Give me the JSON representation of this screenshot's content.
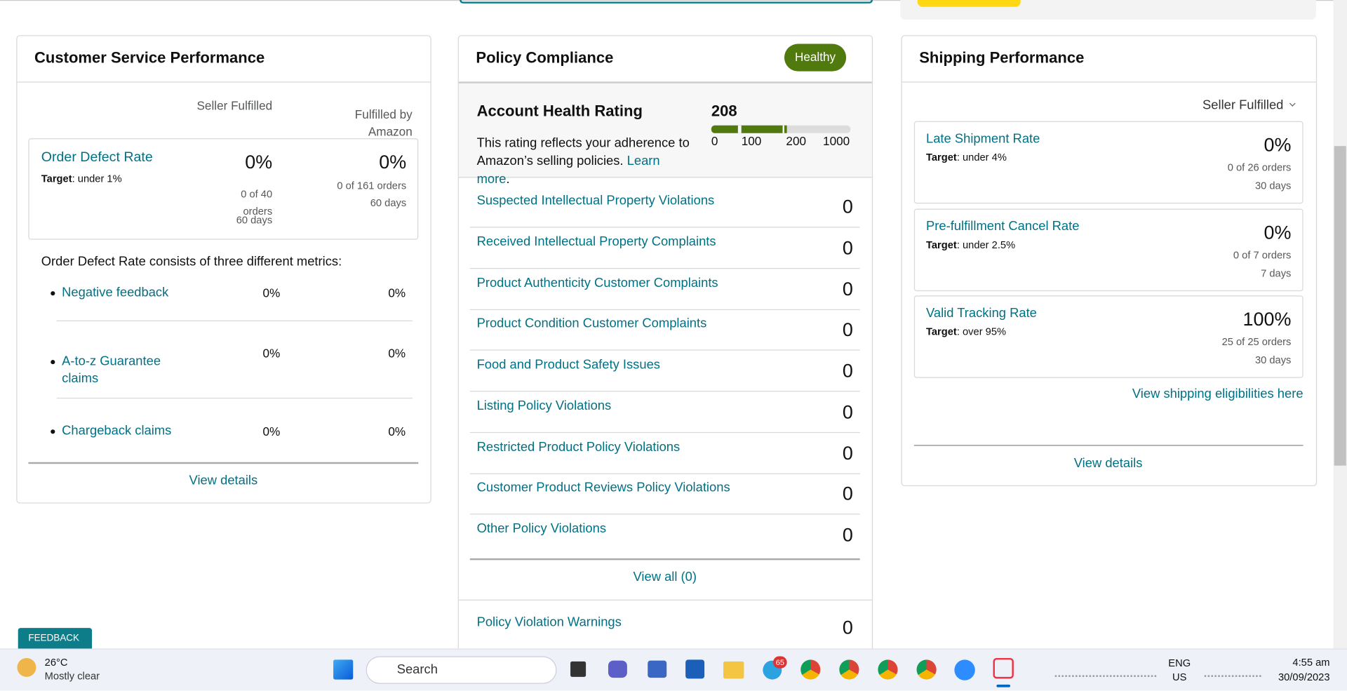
{
  "customer_service": {
    "title": "Customer Service Performance",
    "columns": [
      "Seller Fulfilled",
      "Fulfilled by Amazon"
    ],
    "order_defect": {
      "name": "Order Defect Rate",
      "target_label": "Target",
      "target_text": ": under 1%",
      "seller": {
        "rate": "0%",
        "orders": "0 of 40 orders",
        "period": "60 days"
      },
      "fba": {
        "rate": "0%",
        "orders": "0 of 161 orders",
        "period": "60 days"
      }
    },
    "consists": "Order Defect Rate consists of three different metrics:",
    "metrics": [
      {
        "name": "Negative feedback",
        "seller": "0%",
        "fba": "0%"
      },
      {
        "name": "A-to-z Guarantee claims",
        "seller": "0%",
        "fba": "0%"
      },
      {
        "name": "Chargeback claims",
        "seller": "0%",
        "fba": "0%"
      }
    ],
    "view_details": "View details"
  },
  "policy": {
    "title": "Policy Compliance",
    "badge": "Healthy",
    "rating_title": "Account Health Rating",
    "description": "This rating reflects your adherence to Amazon’s selling policies. ",
    "learn_more": "Learn more",
    "period": ".",
    "score": 208,
    "scale": [
      0,
      100,
      200,
      1000
    ],
    "rows": [
      {
        "name": "Suspected Intellectual Property Violations",
        "count": 0
      },
      {
        "name": "Received Intellectual Property Complaints",
        "count": 0
      },
      {
        "name": "Product Authenticity Customer Complaints",
        "count": 0
      },
      {
        "name": "Product Condition Customer Complaints",
        "count": 0
      },
      {
        "name": "Food and Product Safety Issues",
        "count": 0
      },
      {
        "name": "Listing Policy Violations",
        "count": 0
      },
      {
        "name": "Restricted Product Policy Violations",
        "count": 0
      },
      {
        "name": "Customer Product Reviews Policy Violations",
        "count": 0
      },
      {
        "name": "Other Policy Violations",
        "count": 0
      }
    ],
    "view_all": "View all (0)",
    "warnings": {
      "name": "Policy Violation Warnings",
      "count": 0
    }
  },
  "shipping": {
    "title": "Shipping Performance",
    "filter": "Seller Fulfilled",
    "target_label": "Target",
    "metrics": [
      {
        "name": "Late Shipment Rate",
        "target": ": under 4%",
        "rate": "0%",
        "orders": "0 of 26 orders",
        "period": "30 days"
      },
      {
        "name": "Pre-fulfillment Cancel Rate",
        "target": ": under 2.5%",
        "rate": "0%",
        "orders": "0 of 7 orders",
        "period": "7 days"
      },
      {
        "name": "Valid Tracking Rate",
        "target": ": over 95%",
        "rate": "100%",
        "orders": "25 of 25 orders",
        "period": "30 days"
      }
    ],
    "eligibilities": "View shipping eligibilities here",
    "view_details": "View details"
  },
  "feedback": "FEEDBACK",
  "taskbar": {
    "temperature": "26°C",
    "weather": "Mostly clear",
    "search": "Search",
    "badge": "65",
    "language": "ENG",
    "region": "US",
    "time": "4:55 am",
    "date": "30/09/2023"
  }
}
